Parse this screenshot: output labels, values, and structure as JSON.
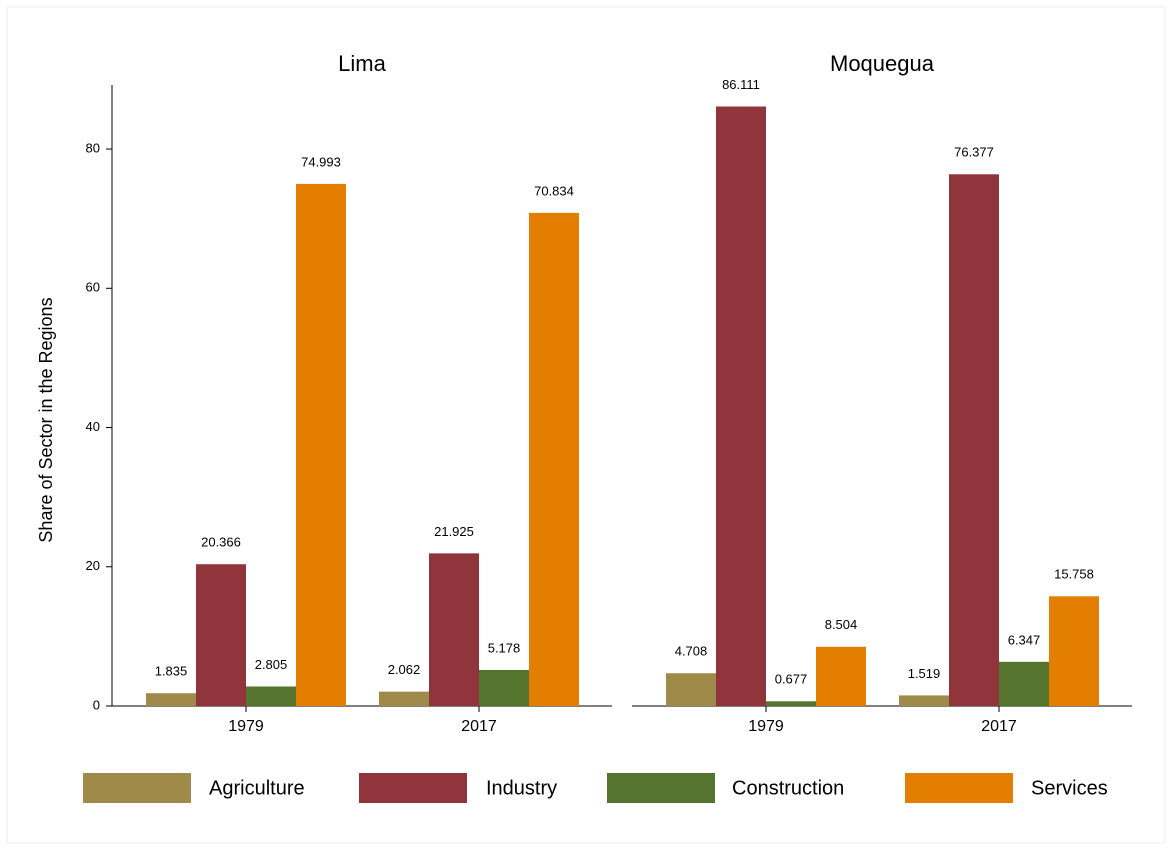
{
  "chart_data": [
    {
      "type": "bar",
      "title": "Lima",
      "y_label": "Share of Sector in the Regions",
      "categories": [
        "1979",
        "2017"
      ],
      "series": [
        {
          "name": "Agriculture",
          "color": "#a08a4a",
          "values": [
            1.835,
            2.062
          ]
        },
        {
          "name": "Industry",
          "color": "#90353b",
          "values": [
            20.366,
            21.925
          ]
        },
        {
          "name": "Construction",
          "color": "#55752f",
          "values": [
            2.805,
            5.178
          ]
        },
        {
          "name": "Services",
          "color": "#e37e00",
          "values": [
            74.993,
            70.834
          ]
        }
      ],
      "ylim": [
        0,
        89.2
      ],
      "yticks": [
        0,
        20,
        40,
        60,
        80
      ]
    },
    {
      "type": "bar",
      "title": "Moquegua",
      "categories": [
        "1979",
        "2017"
      ],
      "series": [
        {
          "color": "#a08a4a",
          "values": [
            4.708,
            1.519
          ]
        },
        {
          "color": "#90353b",
          "values": [
            86.111,
            76.377
          ]
        },
        {
          "color": "#55752f",
          "values": [
            0.677,
            6.347
          ]
        },
        {
          "color": "#e37e00",
          "values": [
            8.504,
            15.758
          ]
        }
      ],
      "ylim": [
        0,
        89.2
      ]
    }
  ]
}
